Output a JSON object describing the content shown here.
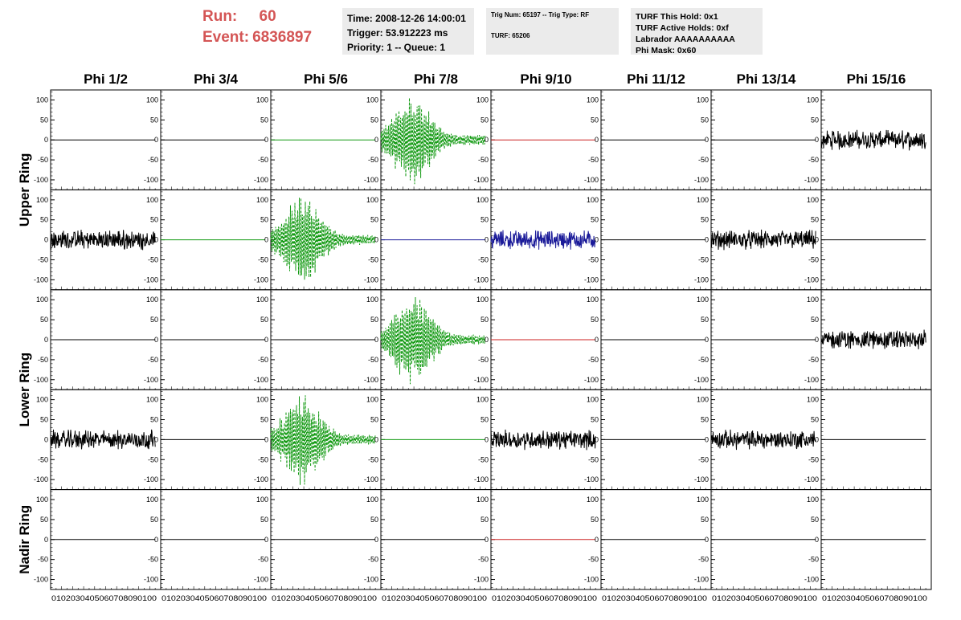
{
  "header": {
    "run_label": "Run:",
    "run_value": "60",
    "event_label": "Event:",
    "event_value": "6836897",
    "time_text": "Time: 2008-12-26 14:00:01",
    "trigger_text": "Trigger: 53.912223 ms",
    "priority_text": "Priority: 1 -- Queue: 1",
    "trig_num_text": "Trig Num: 65197 -- Trig Type: RF",
    "turf_text": "TURF: 65206",
    "turf_hold_text": "TURF This Hold: 0x1",
    "turf_active_text": "TURF Active Holds: 0xf",
    "labrador_text": "Labrador AAAAAAAAAA",
    "phi_mask_text": "Phi Mask: 0x60"
  },
  "chart_data": {
    "type": "line",
    "columns": [
      "Phi 1/2",
      "Phi 3/4",
      "Phi 5/6",
      "Phi 7/8",
      "Phi 9/10",
      "Phi 11/12",
      "Phi 13/14",
      "Phi 15/16"
    ],
    "row_groups": [
      "Upper Ring",
      "Lower Ring",
      "Nadir Ring"
    ],
    "rows": 5,
    "xlim": [
      0,
      100
    ],
    "ylim": [
      -125,
      125
    ],
    "y_ticks": [
      "100",
      "50",
      "0",
      "-50",
      "-100"
    ],
    "x_tick_labels": "0 10 20 30 40 50 60 70 80 90 100",
    "colors": {
      "black": "#000000",
      "green": "#119911",
      "red": "#cc2222",
      "blue": "#1a1a99"
    },
    "panels": [
      [
        "flat-black",
        "flat-black",
        "flat-green",
        "pulse-green",
        "flat-red",
        "flat-black",
        "flat-black",
        "noise-black"
      ],
      [
        "noise-black",
        "flat-green",
        "pulse-green",
        "flat-blue",
        "noise-blue",
        "flat-black",
        "noise-black",
        "flat-black"
      ],
      [
        "flat-black",
        "flat-black",
        "flat-black",
        "pulse-green",
        "flat-red",
        "flat-black",
        "flat-black",
        "noise-black"
      ],
      [
        "noise-black",
        "flat-black",
        "pulse-green",
        "flat-green",
        "noise-black",
        "flat-black",
        "noise-black",
        "flat-black"
      ],
      [
        "flat-black",
        "flat-black",
        "flat-black",
        "flat-black",
        "flat-red",
        "flat-black",
        "flat-black",
        "flat-black"
      ]
    ],
    "waveform_amplitude": {
      "noise": 18,
      "pulse_peak": 110
    }
  }
}
